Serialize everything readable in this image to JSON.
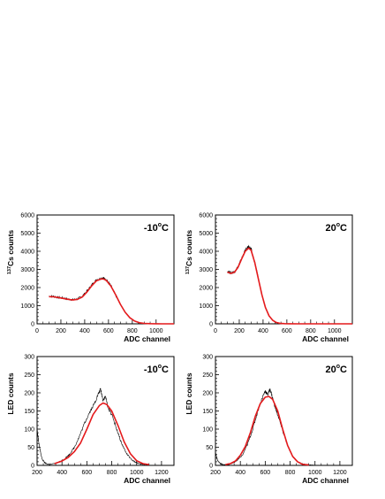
{
  "chart_data": [
    {
      "type": "line",
      "xlabel": "ADC channel",
      "ylabel_sup": "137",
      "ylabel": "Cs counts",
      "temperature": {
        "main": "-10",
        "sup": "o",
        "unit": "C"
      },
      "xlim": [
        0,
        1150
      ],
      "ylim": [
        0,
        6000
      ],
      "xticks": [
        0,
        200,
        400,
        600,
        800,
        1000
      ],
      "yticks": [
        0,
        1000,
        2000,
        3000,
        4000,
        5000,
        6000
      ],
      "series": [
        {
          "color": "#000000",
          "x": [
            100,
            140,
            180,
            220,
            260,
            300,
            340,
            380,
            420,
            460,
            500,
            540,
            560,
            580,
            620,
            660,
            700
          ],
          "y": [
            1530,
            1510,
            1450,
            1420,
            1360,
            1330,
            1370,
            1530,
            1810,
            2150,
            2430,
            2530,
            2510,
            2440,
            2100,
            1580,
            1060
          ]
        },
        {
          "color": "#e41a1c",
          "x": [
            100,
            140,
            180,
            220,
            260,
            300,
            340,
            380,
            420,
            460,
            500,
            540,
            560,
            580,
            620,
            660,
            700,
            740,
            780,
            820,
            860,
            900,
            950,
            1000,
            1050,
            1100,
            1150
          ],
          "y": [
            1500,
            1490,
            1450,
            1400,
            1350,
            1310,
            1350,
            1480,
            1760,
            2100,
            2380,
            2480,
            2470,
            2400,
            2080,
            1600,
            1080,
            640,
            330,
            150,
            60,
            25,
            10,
            5,
            2,
            1,
            0
          ]
        }
      ]
    },
    {
      "type": "line",
      "xlabel": "ADC channel",
      "ylabel_sup": "137",
      "ylabel": "Cs counts",
      "temperature": {
        "main": "20",
        "sup": "o",
        "unit": "C"
      },
      "xlim": [
        0,
        1150
      ],
      "ylim": [
        0,
        6000
      ],
      "xticks": [
        0,
        200,
        400,
        600,
        800,
        1000
      ],
      "yticks": [
        0,
        1000,
        2000,
        3000,
        4000,
        5000,
        6000
      ],
      "series": [
        {
          "color": "#000000",
          "x": [
            100,
            130,
            160,
            190,
            220,
            250,
            280,
            300,
            330,
            360
          ],
          "y": [
            2900,
            2810,
            2870,
            3150,
            3600,
            4050,
            4250,
            4100,
            3400,
            2550
          ]
        },
        {
          "color": "#e41a1c",
          "x": [
            100,
            130,
            160,
            190,
            220,
            250,
            280,
            300,
            330,
            360,
            390,
            420,
            450,
            480,
            510,
            540,
            580,
            620,
            700,
            800,
            900,
            1000,
            1150
          ],
          "y": [
            2850,
            2780,
            2850,
            3120,
            3580,
            4000,
            4180,
            4050,
            3380,
            2500,
            1600,
            900,
            440,
            200,
            80,
            30,
            10,
            4,
            1,
            0,
            0,
            0,
            0
          ]
        }
      ]
    },
    {
      "type": "line",
      "xlabel": "ADC channel",
      "ylabel": "LED counts",
      "temperature": {
        "main": "-10",
        "sup": "o",
        "unit": "C"
      },
      "xlim": [
        200,
        1300
      ],
      "ylim": [
        0,
        300
      ],
      "xticks": [
        200,
        400,
        600,
        800,
        1000,
        1200
      ],
      "yticks": [
        0,
        50,
        100,
        150,
        200,
        250,
        300
      ],
      "series": [
        {
          "color": "#000000",
          "x": [
            200,
            210,
            220,
            230,
            240,
            260,
            280,
            300,
            340,
            380,
            420,
            460,
            500,
            540,
            580,
            620,
            660,
            690,
            710,
            730,
            750,
            770,
            800,
            840,
            880,
            920,
            960,
            1000,
            1040,
            1100
          ],
          "y": [
            100,
            72,
            50,
            32,
            18,
            8,
            4,
            2,
            5,
            10,
            18,
            30,
            50,
            80,
            115,
            145,
            170,
            195,
            210,
            180,
            190,
            160,
            140,
            100,
            60,
            32,
            15,
            7,
            3,
            1
          ]
        },
        {
          "color": "#e41a1c",
          "x": [
            340,
            400,
            450,
            500,
            550,
            600,
            650,
            700,
            730,
            760,
            800,
            850,
            900,
            950,
            1000,
            1050,
            1100
          ],
          "y": [
            5,
            12,
            22,
            38,
            62,
            100,
            140,
            165,
            172,
            168,
            150,
            110,
            65,
            32,
            13,
            5,
            2
          ]
        }
      ]
    },
    {
      "type": "line",
      "xlabel": "ADC channel",
      "ylabel": "LED counts",
      "temperature": {
        "main": "20",
        "sup": "o",
        "unit": "C"
      },
      "xlim": [
        200,
        1300
      ],
      "ylim": [
        0,
        300
      ],
      "xticks": [
        200,
        400,
        600,
        800,
        1000,
        1200
      ],
      "yticks": [
        0,
        50,
        100,
        150,
        200,
        250,
        300
      ],
      "series": [
        {
          "color": "#000000",
          "x": [
            200,
            210,
            220,
            240,
            260,
            300,
            340,
            380,
            420,
            460,
            500,
            540,
            580,
            600,
            620,
            640,
            660,
            680,
            700,
            740,
            780,
            820,
            860,
            900,
            940,
            1000
          ],
          "y": [
            35,
            22,
            12,
            5,
            2,
            2,
            6,
            15,
            30,
            60,
            100,
            150,
            190,
            205,
            195,
            210,
            185,
            160,
            140,
            95,
            55,
            25,
            10,
            4,
            2,
            0
          ]
        },
        {
          "color": "#e41a1c",
          "x": [
            280,
            320,
            360,
            400,
            440,
            480,
            520,
            560,
            600,
            630,
            660,
            700,
            740,
            780,
            820,
            860,
            900,
            950
          ],
          "y": [
            2,
            5,
            12,
            28,
            52,
            90,
            135,
            170,
            188,
            190,
            182,
            150,
            100,
            55,
            25,
            10,
            3,
            1
          ]
        }
      ]
    }
  ]
}
